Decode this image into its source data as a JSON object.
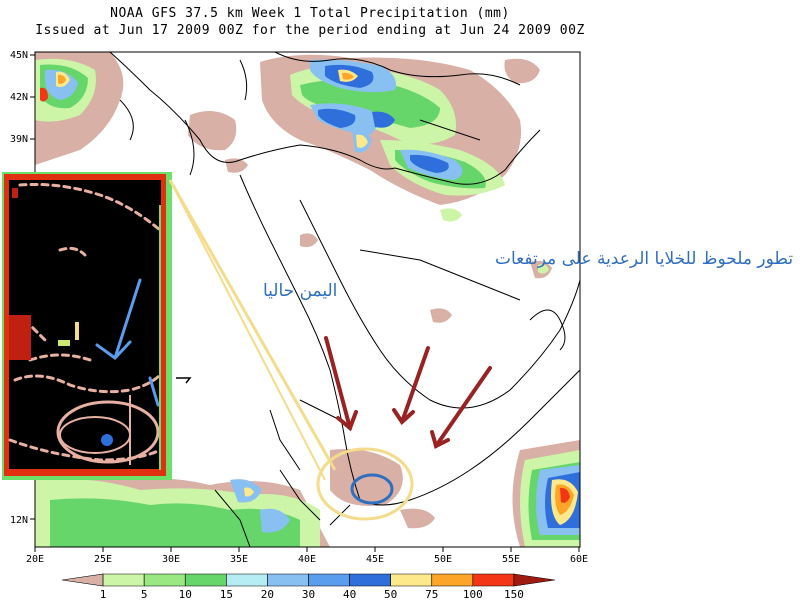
{
  "title": {
    "line1": "NOAA GFS 37.5 km Week 1 Total Precipitation (mm)",
    "line2": "Issued at Jun 17 2009 00Z for the period ending at Jun 24 2009 00Z"
  },
  "axes": {
    "lat_labels": [
      "45N",
      "42N",
      "39N",
      "12N"
    ],
    "lon_labels": [
      "20E",
      "25E",
      "30E",
      "35E",
      "40E",
      "45E",
      "50E",
      "55E",
      "60E"
    ]
  },
  "colorbar": {
    "labels": [
      "1",
      "5",
      "10",
      "15",
      "20",
      "30",
      "40",
      "50",
      "75",
      "100",
      "150"
    ],
    "colors": [
      "#d8b0a6",
      "#ccf5a8",
      "#99e882",
      "#66d66a",
      "#b6ecf3",
      "#88c0f2",
      "#5a9ced",
      "#2f6fdc",
      "#fde88a",
      "#fca528",
      "#f23616",
      "#a01a10"
    ]
  },
  "annotation": {
    "line1": "تطور ملحوظ للخلايا الرعدية على مرتفعات",
    "line2": "اليمن حاليا"
  },
  "colors": {
    "annotation_blue": "#2f6fc0",
    "arrow_red": "#9a2222",
    "highlight_yellow": "#f5dc8a",
    "inset_frame_red": "#e03010",
    "inset_frame_green": "#6ce06a"
  }
}
